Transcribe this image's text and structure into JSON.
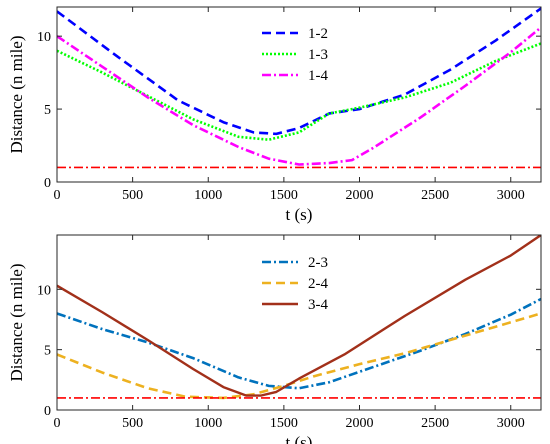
{
  "chart_data": [
    {
      "type": "line",
      "xlabel": "t (s)",
      "ylabel": "Distance (n mile)",
      "xlim": [
        0,
        3200
      ],
      "ylim": [
        0,
        12
      ],
      "xticks": [
        0,
        500,
        1000,
        1500,
        2000,
        2500,
        3000
      ],
      "yticks": [
        0,
        5,
        10
      ],
      "legend_position": "top-center",
      "grid": false,
      "series": [
        {
          "name": "1-2",
          "color": "#0000ff",
          "style": "dashed",
          "x": [
            0,
            400,
            800,
            1100,
            1300,
            1450,
            1600,
            1700,
            1800,
            2000,
            2300,
            2600,
            2900,
            3200
          ],
          "y": [
            11.7,
            8.6,
            5.6,
            4.1,
            3.4,
            3.3,
            3.7,
            4.2,
            4.7,
            5.0,
            6.0,
            7.7,
            9.7,
            11.9
          ]
        },
        {
          "name": "1-3",
          "color": "#00ff00",
          "style": "dotted",
          "x": [
            0,
            300,
            600,
            900,
            1200,
            1400,
            1600,
            1800,
            2000,
            2300,
            2600,
            2900,
            3200
          ],
          "y": [
            9.0,
            7.5,
            5.9,
            4.3,
            3.1,
            2.9,
            3.4,
            4.7,
            5.1,
            5.8,
            6.8,
            8.3,
            9.5
          ]
        },
        {
          "name": "1-4",
          "color": "#ff00ff",
          "style": "dashdot",
          "x": [
            0,
            300,
            600,
            900,
            1200,
            1400,
            1600,
            1700,
            1800,
            1950,
            2100,
            2400,
            2700,
            3000,
            3200
          ],
          "y": [
            10.0,
            7.9,
            5.8,
            3.9,
            2.4,
            1.6,
            1.2,
            1.25,
            1.3,
            1.5,
            2.4,
            4.4,
            6.6,
            8.9,
            10.6
          ]
        },
        {
          "name": "",
          "color": "#ff0000",
          "style": "dashdot",
          "x": [
            0,
            3200
          ],
          "y": [
            1.0,
            1.0
          ]
        }
      ]
    },
    {
      "type": "line",
      "xlabel": "t (s)",
      "ylabel": "Distance (n mile)",
      "xlim": [
        0,
        3200
      ],
      "ylim": [
        0,
        14.5
      ],
      "xticks": [
        0,
        500,
        1000,
        1500,
        2000,
        2500,
        3000
      ],
      "yticks": [
        0,
        5,
        10
      ],
      "legend_position": "top-center",
      "grid": false,
      "series": [
        {
          "name": "2-3",
          "color": "#0072bd",
          "style": "dashdot",
          "x": [
            0,
            300,
            600,
            900,
            1200,
            1400,
            1600,
            1800,
            2100,
            2400,
            2700,
            3000,
            3200
          ],
          "y": [
            8.0,
            6.7,
            5.6,
            4.3,
            2.7,
            2.0,
            1.8,
            2.3,
            3.6,
            4.9,
            6.3,
            7.9,
            9.2
          ]
        },
        {
          "name": "2-4",
          "color": "#edb120",
          "style": "dashed",
          "x": [
            0,
            300,
            600,
            850,
            1100,
            1300,
            1500,
            1700,
            2000,
            2300,
            2600,
            2900,
            3200
          ],
          "y": [
            4.6,
            3.1,
            1.8,
            1.1,
            1.0,
            1.3,
            2.0,
            2.8,
            3.8,
            4.7,
            5.8,
            6.9,
            8.0
          ]
        },
        {
          "name": "3-4",
          "color": "#a2301a",
          "style": "solid",
          "x": [
            0,
            300,
            600,
            900,
            1100,
            1250,
            1350,
            1450,
            1600,
            1900,
            2300,
            2700,
            3000,
            3200
          ],
          "y": [
            10.3,
            8.1,
            5.8,
            3.4,
            1.9,
            1.2,
            1.2,
            1.5,
            2.6,
            4.6,
            7.8,
            10.8,
            12.8,
            14.5
          ]
        },
        {
          "name": "",
          "color": "#ff0000",
          "style": "dashdot",
          "x": [
            0,
            3200
          ],
          "y": [
            1.0,
            1.0
          ]
        }
      ]
    }
  ]
}
